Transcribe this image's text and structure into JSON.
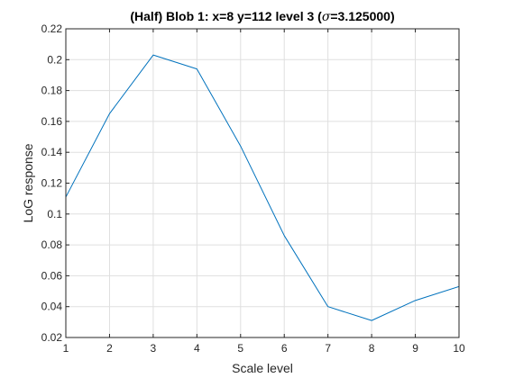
{
  "chart_data": {
    "type": "line",
    "title": "(Half) Blob 1: x=8 y=112 level 3 (",
    "title_sigma": "σ",
    "title_suffix": "=3.125000)",
    "xlabel": "Scale level",
    "ylabel": "LoG response",
    "xlim": [
      1,
      10
    ],
    "ylim": [
      0.02,
      0.22
    ],
    "x_ticks": [
      1,
      2,
      3,
      4,
      5,
      6,
      7,
      8,
      9,
      10
    ],
    "y_ticks": [
      0.02,
      0.04,
      0.06,
      0.08,
      0.1,
      0.12,
      0.14,
      0.16,
      0.18,
      0.2,
      0.22
    ],
    "x_tick_labels": [
      "1",
      "2",
      "3",
      "4",
      "5",
      "6",
      "7",
      "8",
      "9",
      "10"
    ],
    "y_tick_labels": [
      "0.02",
      "0.04",
      "0.06",
      "0.08",
      "0.1",
      "0.12",
      "0.14",
      "0.16",
      "0.18",
      "0.2",
      "0.22"
    ],
    "grid": true,
    "series": [
      {
        "x": [
          1,
          2,
          3,
          4,
          5,
          6,
          7,
          8,
          9,
          10
        ],
        "values": [
          0.111,
          0.165,
          0.203,
          0.194,
          0.144,
          0.086,
          0.04,
          0.031,
          0.044,
          0.053
        ],
        "color": "#0072BD"
      }
    ]
  }
}
